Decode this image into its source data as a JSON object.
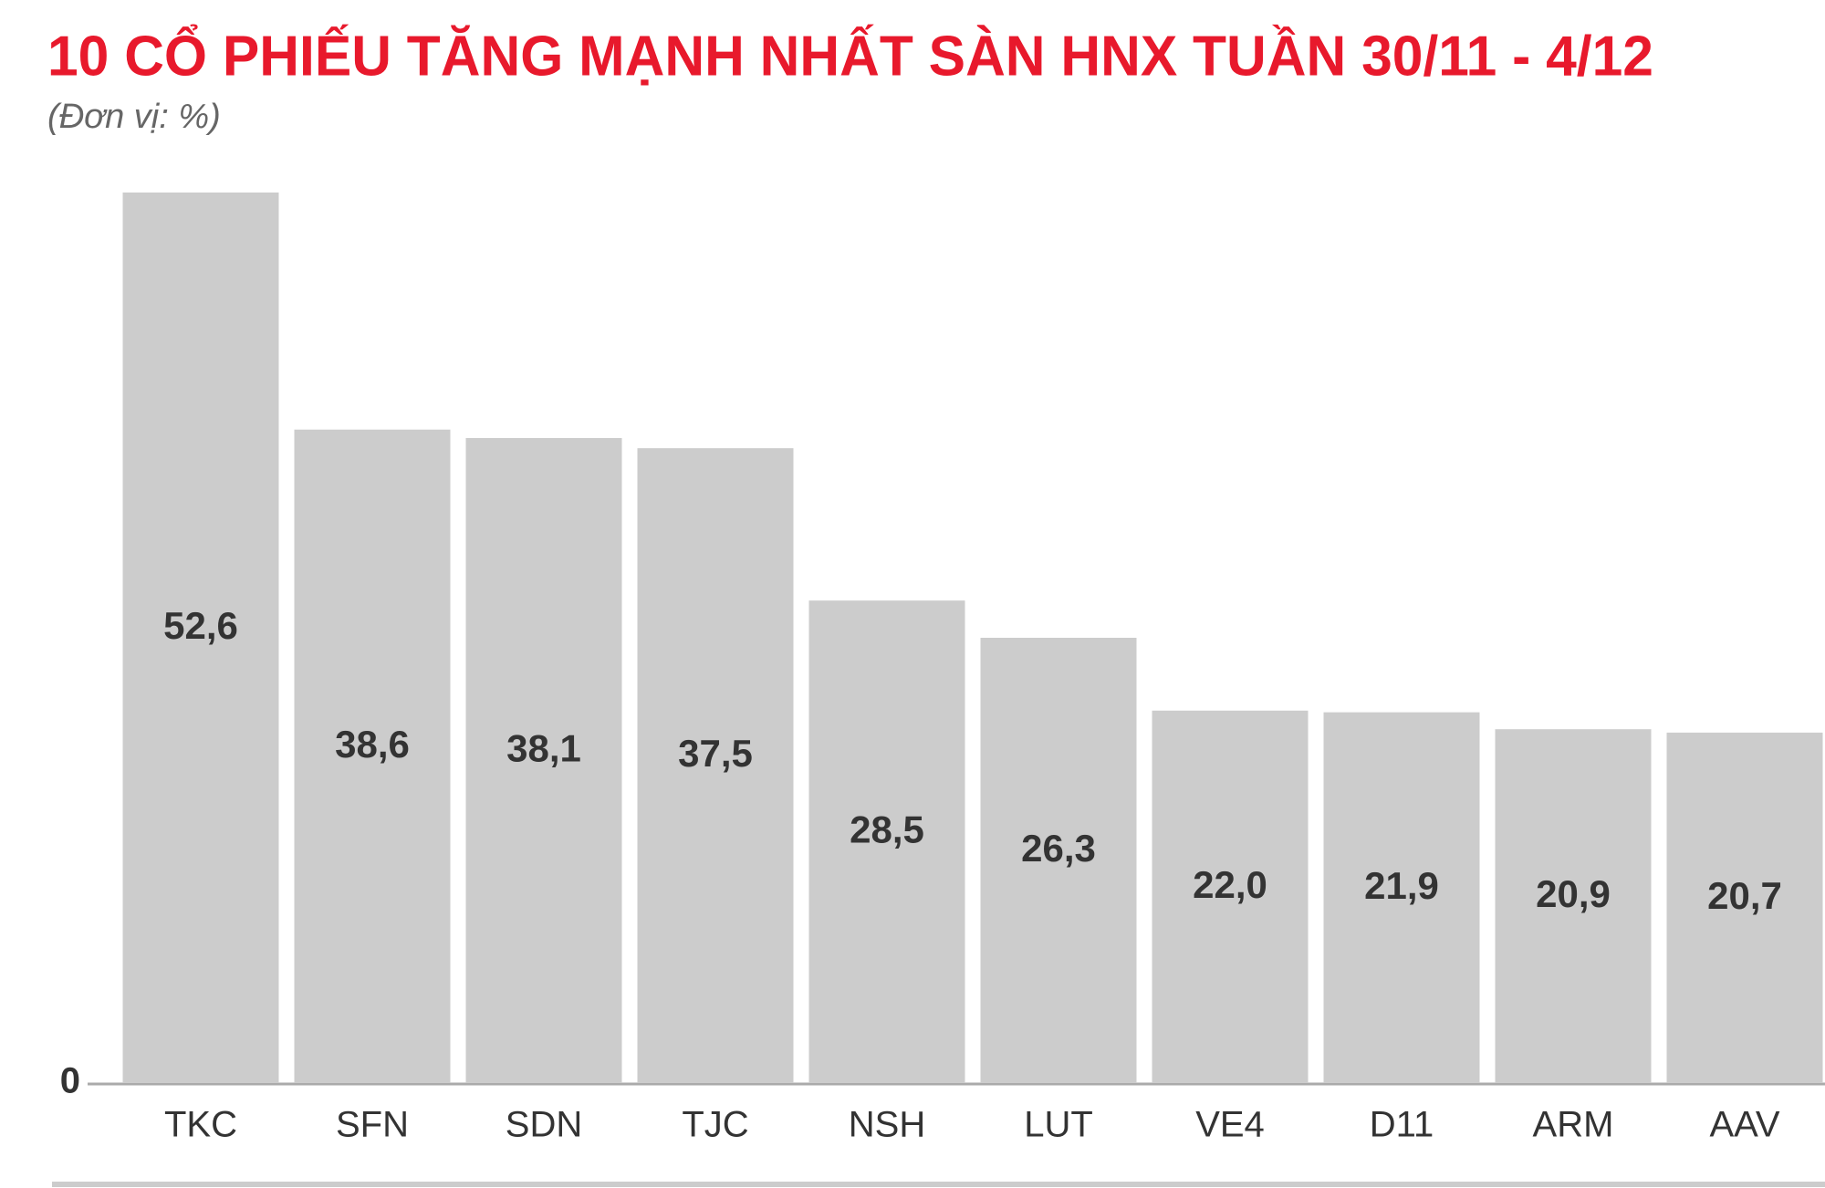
{
  "chart_data": {
    "type": "bar",
    "title": "10 CỔ PHIẾU TĂNG MẠNH NHẤT SÀN HNX TUẦN 30/11 - 4/12",
    "subtitle": "(Đơn vị: %)",
    "categories": [
      "TKC",
      "SFN",
      "SDN",
      "TJC",
      "NSH",
      "LUT",
      "VE4",
      "D11",
      "ARM",
      "AAV"
    ],
    "values": [
      52.6,
      38.6,
      38.1,
      37.5,
      28.5,
      26.3,
      22.0,
      21.9,
      20.9,
      20.7
    ],
    "value_labels": [
      "52,6",
      "38,6",
      "38,1",
      "37,5",
      "28,5",
      "26,3",
      "22,0",
      "21,9",
      "20,9",
      "20,7"
    ],
    "color": "#cccccc",
    "ylim": [
      0,
      52.6
    ],
    "yticks": [
      0
    ],
    "grid": false
  }
}
